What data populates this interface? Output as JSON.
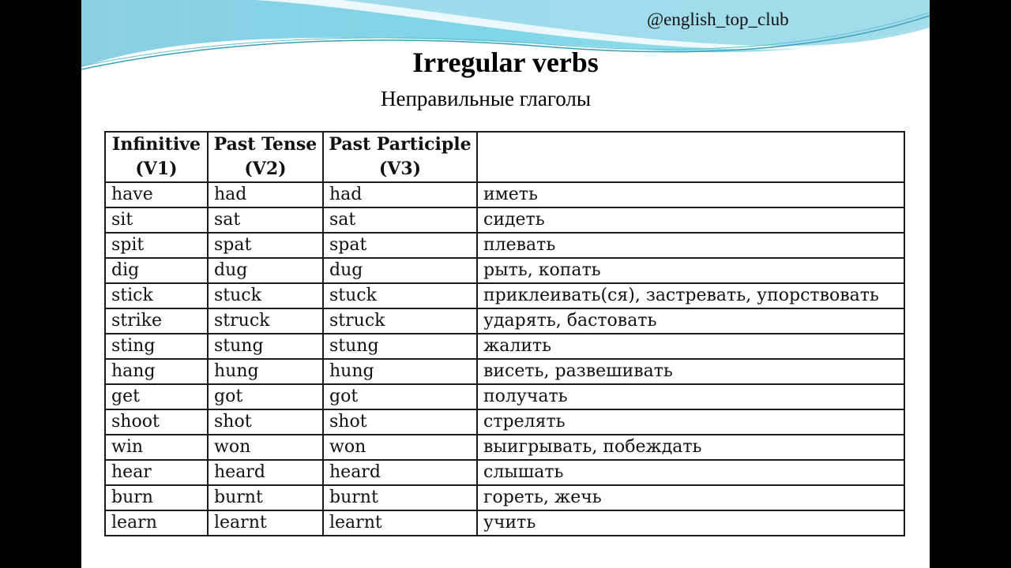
{
  "watermark": "@english_top_club",
  "title": "Irregular verbs",
  "subtitle": "Неправильные глаголы",
  "colors": {
    "wave_light": "#7fd3e6",
    "wave_dark": "#5fb6dc",
    "background": "#ffffff"
  },
  "table": {
    "headers": [
      [
        "Infinitive",
        "(V1)"
      ],
      [
        "Past Tense",
        "(V2)"
      ],
      [
        "Past Participle",
        "(V3)"
      ],
      ""
    ],
    "rows": [
      [
        "have",
        "had",
        "had",
        "иметь"
      ],
      [
        "sit",
        "sat",
        "sat",
        "сидеть"
      ],
      [
        "spit",
        "spat",
        "spat",
        "плевать"
      ],
      [
        "dig",
        "dug",
        "dug",
        "рыть, копать"
      ],
      [
        "stick",
        "stuck",
        "stuck",
        "приклеивать(ся), застревать, упорствовать"
      ],
      [
        "strike",
        "struck",
        "struck",
        "ударять, бастовать"
      ],
      [
        "sting",
        "stung",
        "stung",
        "жалить"
      ],
      [
        "hang",
        "hung",
        "hung",
        "висеть, развешивать"
      ],
      [
        "get",
        "got",
        "got",
        "получать"
      ],
      [
        "shoot",
        "shot",
        "shot",
        "стрелять"
      ],
      [
        "win",
        "won",
        "won",
        "выигрывать, побеждать"
      ],
      [
        "hear",
        "heard",
        "heard",
        "слышать"
      ],
      [
        "burn",
        "burnt",
        "burnt",
        "гореть, жечь"
      ],
      [
        "learn",
        "learnt",
        "learnt",
        "учить"
      ]
    ]
  }
}
